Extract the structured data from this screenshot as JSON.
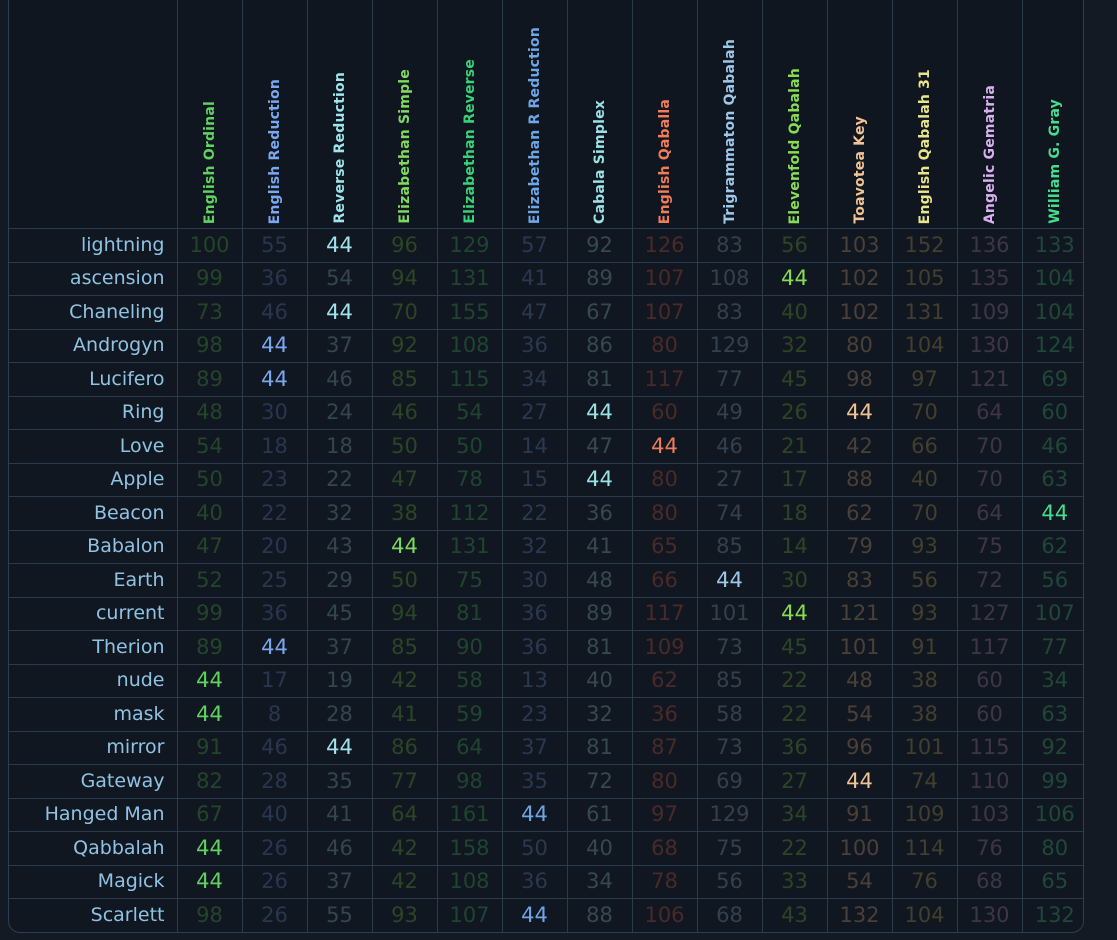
{
  "target": "44",
  "ciphers": [
    {
      "name": "English Ordinal",
      "color": "#5fd35f",
      "dim": "#23452a"
    },
    {
      "name": "English Reduction",
      "color": "#7aa8f0",
      "dim": "#2a3650"
    },
    {
      "name": "Reverse Reduction",
      "color": "#9fe4ec",
      "dim": "#33454e"
    },
    {
      "name": "Elizabethan Simple",
      "color": "#7fd860",
      "dim": "#2b4526"
    },
    {
      "name": "Elizabethan Reverse",
      "color": "#38d27a",
      "dim": "#1f4530"
    },
    {
      "name": "Elizabethan R Reduction",
      "color": "#6ea6e8",
      "dim": "#2a3850"
    },
    {
      "name": "Cabala Simplex",
      "color": "#9ae2e6",
      "dim": "#35494e"
    },
    {
      "name": "English Qaballa",
      "color": "#f07c5c",
      "dim": "#4a2a28"
    },
    {
      "name": "Trigrammaton Qabalah",
      "color": "#9cc8ec",
      "dim": "#34404e"
    },
    {
      "name": "Elevenfold Qabalah",
      "color": "#88dc55",
      "dim": "#2d4526"
    },
    {
      "name": "Toavotea Key",
      "color": "#f0c495",
      "dim": "#4a4038"
    },
    {
      "name": "English Qabalah 31",
      "color": "#e9e58c",
      "dim": "#433f2e"
    },
    {
      "name": "Angelic Gematria",
      "color": "#d8b0f0",
      "dim": "#3e3648"
    },
    {
      "name": "William G. Gray",
      "color": "#46dd8e",
      "dim": "#1f4838"
    }
  ],
  "rows": [
    {
      "word": "lightning",
      "values": [
        "100",
        "55",
        "44",
        "96",
        "129",
        "57",
        "92",
        "126",
        "83",
        "56",
        "103",
        "152",
        "136",
        "133"
      ]
    },
    {
      "word": "ascension",
      "values": [
        "99",
        "36",
        "54",
        "94",
        "131",
        "41",
        "89",
        "107",
        "108",
        "44",
        "102",
        "105",
        "135",
        "104"
      ]
    },
    {
      "word": "Chaneling",
      "values": [
        "73",
        "46",
        "44",
        "70",
        "155",
        "47",
        "67",
        "107",
        "83",
        "40",
        "102",
        "131",
        "109",
        "104"
      ]
    },
    {
      "word": "Androgyn",
      "values": [
        "98",
        "44",
        "37",
        "92",
        "108",
        "36",
        "86",
        "80",
        "129",
        "32",
        "80",
        "104",
        "130",
        "124"
      ]
    },
    {
      "word": "Lucifero",
      "values": [
        "89",
        "44",
        "46",
        "85",
        "115",
        "34",
        "81",
        "117",
        "77",
        "45",
        "98",
        "97",
        "121",
        "69"
      ]
    },
    {
      "word": "Ring",
      "values": [
        "48",
        "30",
        "24",
        "46",
        "54",
        "27",
        "44",
        "60",
        "49",
        "26",
        "44",
        "70",
        "64",
        "60"
      ]
    },
    {
      "word": "Love",
      "values": [
        "54",
        "18",
        "18",
        "50",
        "50",
        "14",
        "47",
        "44",
        "46",
        "21",
        "42",
        "66",
        "70",
        "46"
      ]
    },
    {
      "word": "Apple",
      "values": [
        "50",
        "23",
        "22",
        "47",
        "78",
        "15",
        "44",
        "80",
        "27",
        "17",
        "88",
        "40",
        "70",
        "63"
      ]
    },
    {
      "word": "Beacon",
      "values": [
        "40",
        "22",
        "32",
        "38",
        "112",
        "22",
        "36",
        "80",
        "74",
        "18",
        "62",
        "70",
        "64",
        "44"
      ]
    },
    {
      "word": "Babalon",
      "values": [
        "47",
        "20",
        "43",
        "44",
        "131",
        "32",
        "41",
        "65",
        "85",
        "14",
        "79",
        "93",
        "75",
        "62"
      ]
    },
    {
      "word": "Earth",
      "values": [
        "52",
        "25",
        "29",
        "50",
        "75",
        "30",
        "48",
        "66",
        "44",
        "30",
        "83",
        "56",
        "72",
        "56"
      ]
    },
    {
      "word": "current",
      "values": [
        "99",
        "36",
        "45",
        "94",
        "81",
        "36",
        "89",
        "117",
        "101",
        "44",
        "121",
        "93",
        "127",
        "107"
      ]
    },
    {
      "word": "Therion",
      "values": [
        "89",
        "44",
        "37",
        "85",
        "90",
        "36",
        "81",
        "109",
        "73",
        "45",
        "101",
        "91",
        "117",
        "77"
      ]
    },
    {
      "word": "nude",
      "values": [
        "44",
        "17",
        "19",
        "42",
        "58",
        "13",
        "40",
        "62",
        "85",
        "22",
        "48",
        "38",
        "60",
        "34"
      ]
    },
    {
      "word": "mask",
      "values": [
        "44",
        "8",
        "28",
        "41",
        "59",
        "23",
        "32",
        "36",
        "58",
        "22",
        "54",
        "38",
        "60",
        "63"
      ]
    },
    {
      "word": "mirror",
      "values": [
        "91",
        "46",
        "44",
        "86",
        "64",
        "37",
        "81",
        "87",
        "73",
        "36",
        "96",
        "101",
        "115",
        "92"
      ]
    },
    {
      "word": "Gateway",
      "values": [
        "82",
        "28",
        "35",
        "77",
        "98",
        "35",
        "72",
        "80",
        "69",
        "27",
        "44",
        "74",
        "110",
        "99"
      ]
    },
    {
      "word": "Hanged Man",
      "values": [
        "67",
        "40",
        "41",
        "64",
        "161",
        "44",
        "61",
        "97",
        "129",
        "34",
        "91",
        "109",
        "103",
        "106"
      ]
    },
    {
      "word": "Qabbalah",
      "values": [
        "44",
        "26",
        "46",
        "42",
        "158",
        "50",
        "40",
        "68",
        "75",
        "22",
        "100",
        "114",
        "76",
        "80"
      ]
    },
    {
      "word": "Magick",
      "values": [
        "44",
        "26",
        "37",
        "42",
        "108",
        "36",
        "34",
        "78",
        "56",
        "33",
        "54",
        "76",
        "68",
        "65"
      ]
    },
    {
      "word": "Scarlett",
      "values": [
        "98",
        "26",
        "55",
        "93",
        "107",
        "44",
        "88",
        "106",
        "68",
        "43",
        "132",
        "104",
        "130",
        "132"
      ]
    }
  ]
}
